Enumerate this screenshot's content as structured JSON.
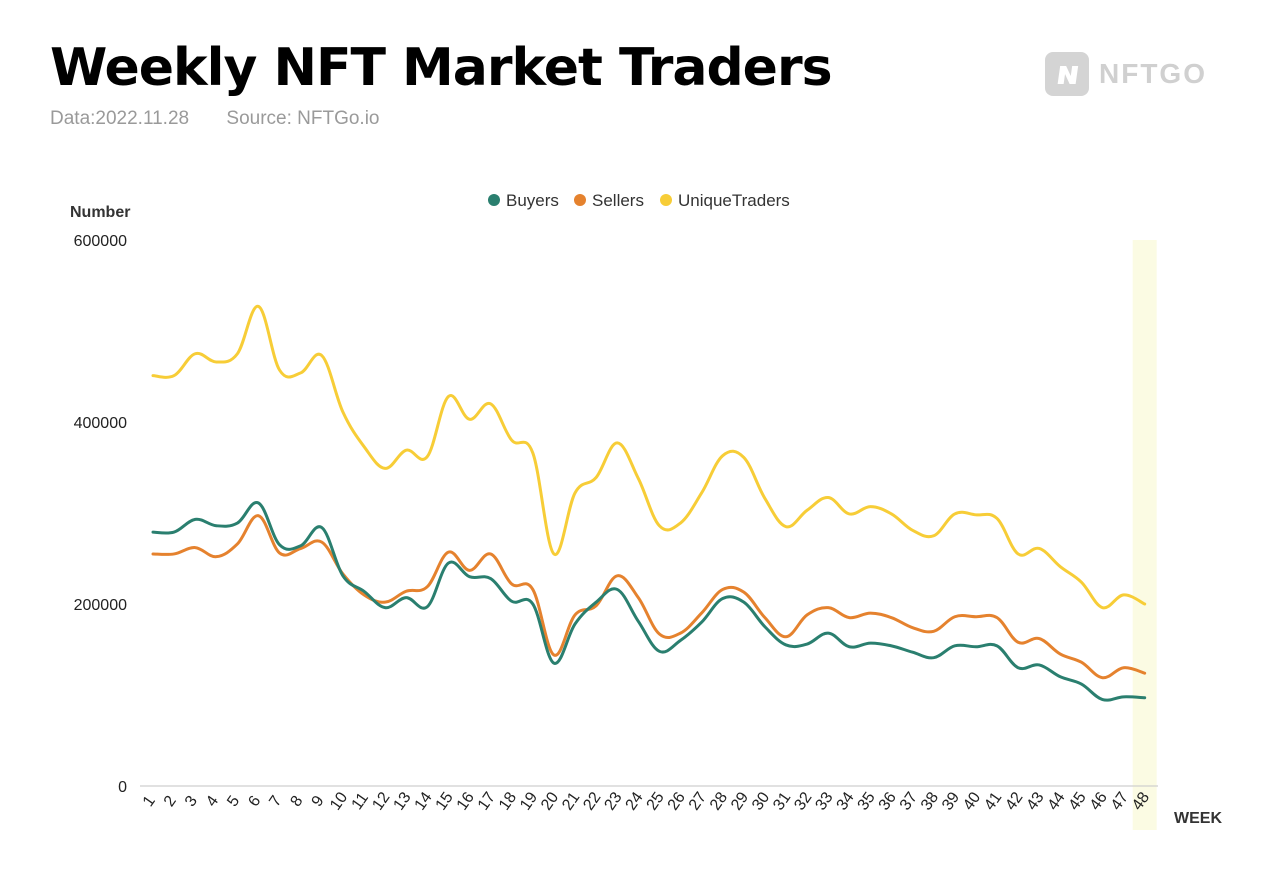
{
  "header": {
    "title": "Weekly NFT Market Traders",
    "date_label": "Data:2022.11.28",
    "source_label": "Source: NFTGo.io"
  },
  "logo": {
    "text": "NFTGO",
    "icon": "nftgo-logo-icon"
  },
  "colors": {
    "buyers": "#2a7f6f",
    "sellers": "#e5822e",
    "unique": "#f7cd37",
    "highlight": "#fbfbe3"
  },
  "chart_data": {
    "type": "line",
    "title": "",
    "xlabel": "WEEK",
    "ylabel": "Number",
    "ylim": [
      0,
      600000
    ],
    "yticks": [
      "0",
      "200000",
      "400000",
      "600000"
    ],
    "categories": [
      "1",
      "2",
      "3",
      "4",
      "5",
      "6",
      "7",
      "8",
      "9",
      "10",
      "11",
      "12",
      "13",
      "14",
      "15",
      "16",
      "17",
      "18",
      "19",
      "20",
      "21",
      "22",
      "23",
      "24",
      "25",
      "26",
      "27",
      "28",
      "29",
      "30",
      "31",
      "32",
      "33",
      "34",
      "35",
      "36",
      "37",
      "38",
      "39",
      "40",
      "41",
      "42",
      "43",
      "44",
      "45",
      "46",
      "47",
      "48"
    ],
    "highlight_category": "48",
    "legend_position": "top-center",
    "grid": false,
    "series": [
      {
        "name": "Buyers",
        "color": "#2a7f6f",
        "values": [
          279000,
          279000,
          293000,
          286000,
          289000,
          311000,
          265000,
          264000,
          284000,
          231000,
          214000,
          196000,
          207000,
          197000,
          245000,
          230000,
          228000,
          203000,
          200000,
          135000,
          178000,
          202000,
          216000,
          181000,
          148000,
          160000,
          180000,
          206000,
          202000,
          175000,
          155000,
          156000,
          168000,
          153000,
          157000,
          154000,
          147000,
          141000,
          154000,
          153000,
          154000,
          130000,
          133000,
          120000,
          112000,
          95000,
          98000,
          97000
        ]
      },
      {
        "name": "Sellers",
        "color": "#e5822e",
        "values": [
          255000,
          255000,
          262000,
          252000,
          266000,
          297000,
          256000,
          261000,
          268000,
          233000,
          210000,
          202000,
          214000,
          219000,
          257000,
          237000,
          255000,
          222000,
          216000,
          144000,
          188000,
          198000,
          231000,
          207000,
          167000,
          168000,
          190000,
          216000,
          213000,
          185000,
          164000,
          188000,
          196000,
          185000,
          190000,
          185000,
          174000,
          170000,
          186000,
          186000,
          185000,
          158000,
          162000,
          145000,
          136000,
          119000,
          130000,
          124000
        ]
      },
      {
        "name": "UniqueTraders",
        "color": "#f7cd37",
        "values": [
          451000,
          451000,
          475000,
          466000,
          475000,
          527000,
          457000,
          454000,
          473000,
          411000,
          373000,
          349000,
          369000,
          362000,
          428000,
          403000,
          420000,
          380000,
          366000,
          255000,
          322000,
          339000,
          377000,
          338000,
          286000,
          289000,
          322000,
          363000,
          361000,
          316000,
          285000,
          303000,
          317000,
          299000,
          307000,
          299000,
          281000,
          275000,
          299000,
          298000,
          294000,
          255000,
          261000,
          241000,
          224000,
          196000,
          210000,
          200000
        ]
      }
    ]
  }
}
